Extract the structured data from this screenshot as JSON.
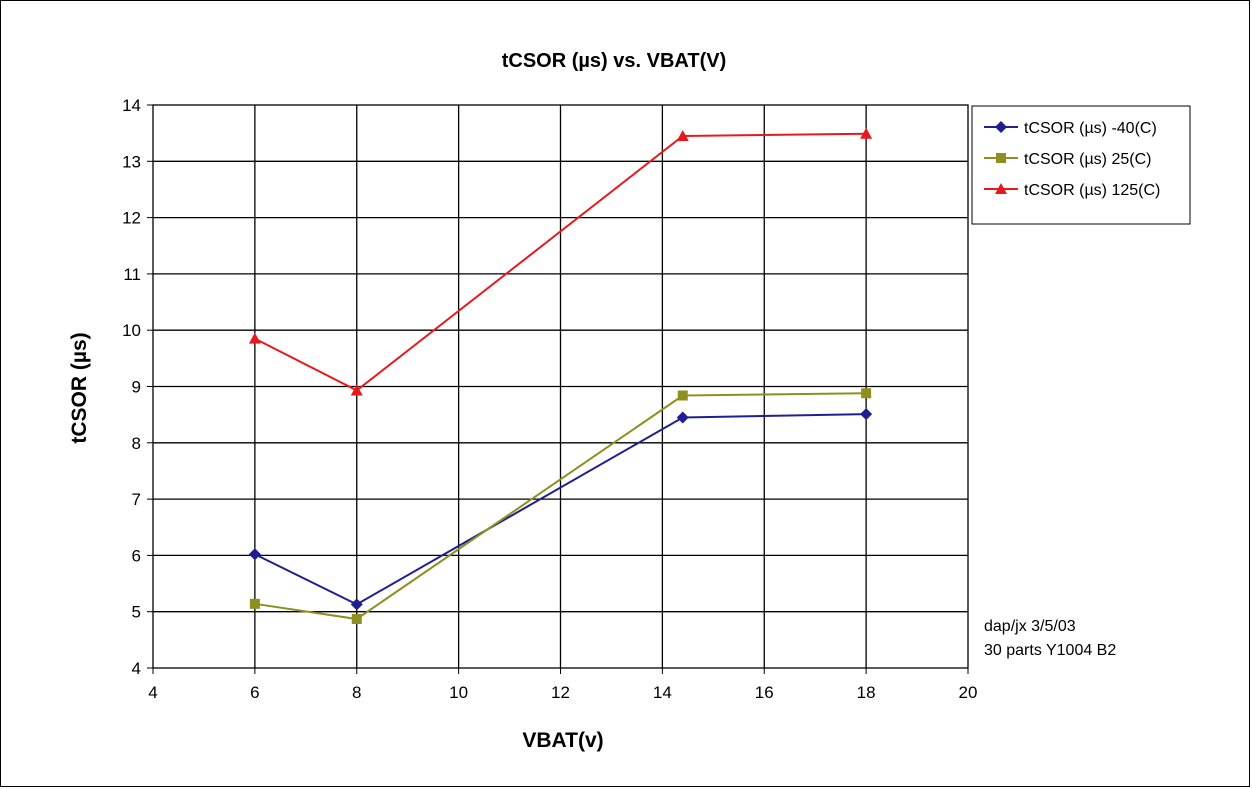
{
  "chart_data": {
    "type": "line",
    "title": "tCSOR (µs) vs. VBAT(V)",
    "xlabel": "VBAT(v)",
    "ylabel": "tCSOR (µs)",
    "xlim": [
      4,
      20
    ],
    "ylim": [
      4,
      14
    ],
    "x_ticks": [
      "4",
      "6",
      "8",
      "10",
      "12",
      "14",
      "16",
      "18",
      "20"
    ],
    "y_ticks": [
      "4",
      "5",
      "6",
      "7",
      "8",
      "9",
      "10",
      "11",
      "12",
      "13",
      "14"
    ],
    "grid": true,
    "legend_position": "top-right",
    "series": [
      {
        "name": "tCSOR (µs) -40(C)",
        "color": "#1f1f8f",
        "marker": "diamond",
        "x": [
          6,
          8,
          14.4,
          18
        ],
        "y": [
          6.02,
          5.13,
          8.45,
          8.51
        ]
      },
      {
        "name": "tCSOR (µs) 25(C)",
        "color": "#8f8f1f",
        "marker": "square",
        "x": [
          6,
          8,
          14.4,
          18
        ],
        "y": [
          5.14,
          4.87,
          8.84,
          8.88
        ]
      },
      {
        "name": "tCSOR (µs) 125(C)",
        "color": "#e8191e",
        "marker": "triangle",
        "x": [
          6,
          8,
          14.4,
          18
        ],
        "y": [
          9.85,
          8.93,
          13.45,
          13.49
        ]
      }
    ],
    "annotations": [
      "dap/jx 3/5/03",
      "30 parts Y1004 B2"
    ]
  }
}
